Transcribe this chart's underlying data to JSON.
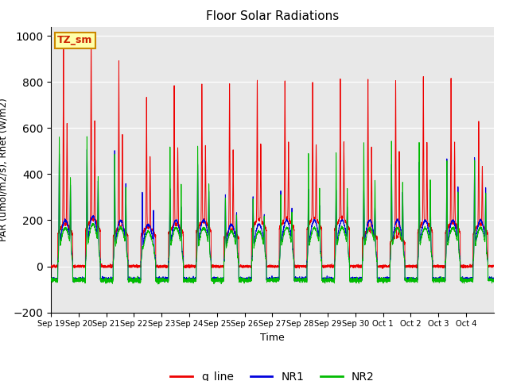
{
  "title": "Floor Solar Radiations",
  "xlabel": "Time",
  "ylabel": "PAR (umol/m2/s), Rnet (W/m2)",
  "ylim": [
    -200,
    1040
  ],
  "yticks": [
    -200,
    0,
    200,
    400,
    600,
    800,
    1000
  ],
  "bg_color": "#e8e8e8",
  "line_colors": {
    "q_line": "#ee0000",
    "NR1": "#0000dd",
    "NR2": "#00bb00"
  },
  "legend_label_box": "TZ_sm",
  "legend_box_color": "#ffffaa",
  "legend_box_edge": "#cc8800",
  "n_days": 16,
  "xtick_labels": [
    "Sep 19",
    "Sep 20",
    "Sep 21",
    "Sep 22",
    "Sep 23",
    "Sep 24",
    "Sep 25",
    "Sep 26",
    "Sep 27",
    "Sep 28",
    "Sep 29",
    "Sep 30",
    "Oct 1",
    "Oct 2",
    "Oct 3",
    "Oct 4"
  ],
  "q_peaks": [
    950,
    940,
    860,
    700,
    750,
    760,
    770,
    770,
    770,
    750,
    770,
    780,
    780,
    780,
    780,
    600
  ],
  "nr_peaks": [
    420,
    430,
    430,
    250,
    260,
    370,
    240,
    230,
    255,
    260,
    260,
    260,
    370,
    380,
    400,
    400
  ],
  "nr2_peaks": [
    500,
    500,
    430,
    30,
    460,
    460,
    240,
    240,
    255,
    430,
    430,
    480,
    480,
    480,
    400,
    400
  ],
  "q_day_base": [
    140,
    155,
    130,
    130,
    140,
    150,
    120,
    155,
    160,
    160,
    160,
    120,
    100,
    150,
    145,
    140
  ],
  "nr_day_base": [
    200,
    220,
    200,
    180,
    200,
    200,
    180,
    180,
    200,
    200,
    200,
    200,
    200,
    200,
    200,
    200
  ],
  "night_val_nr": -55,
  "night_val_nr2": -60,
  "night_val_q": 0,
  "figsize": [
    6.4,
    4.8
  ],
  "dpi": 100
}
